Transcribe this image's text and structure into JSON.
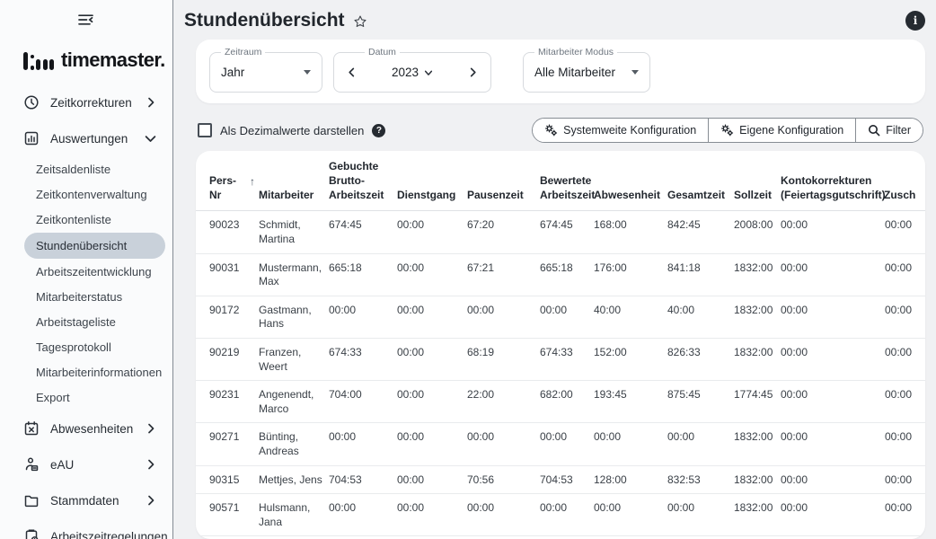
{
  "brand": {
    "logo_text": "timemaster."
  },
  "sidebar": {
    "items": [
      {
        "label": "Zeitkorrekturen",
        "icon": "clock-icon",
        "chevron": "right"
      },
      {
        "label": "Auswertungen",
        "icon": "bar-chart-icon",
        "chevron": "down",
        "active_child": "Stundenübersicht",
        "children": [
          "Zeitsaldenliste",
          "Zeitkontenverwaltung",
          "Zeitkontenliste",
          "Stundenübersicht",
          "Arbeitszeitentwicklung",
          "Mitarbeiterstatus",
          "Arbeitstageliste",
          "Tagesprotokoll",
          "Mitarbeiterinformationen",
          "Export"
        ]
      },
      {
        "label": "Abwesenheiten",
        "icon": "calendar-x-icon",
        "chevron": "right"
      },
      {
        "label": "eAU",
        "icon": "person-document-icon",
        "chevron": "right"
      },
      {
        "label": "Stammdaten",
        "icon": "folder-icon",
        "chevron": "right"
      },
      {
        "label": "Arbeitszeitregelungen",
        "icon": "clipboard-clock-icon",
        "chevron": "right"
      }
    ]
  },
  "header": {
    "title": "Stundenübersicht"
  },
  "filters": {
    "zeitraum": {
      "label": "Zeitraum",
      "value": "Jahr"
    },
    "datum": {
      "label": "Datum",
      "value": "2023"
    },
    "mitarbeiter_modus": {
      "label": "Mitarbeiter Modus",
      "value": "Alle Mitarbeiter"
    }
  },
  "toolbar": {
    "checkbox_label": "Als Dezimalwerte darstellen",
    "checkbox_checked": false,
    "buttons": [
      {
        "label": "Systemweite Konfiguration",
        "icon": "gears-icon"
      },
      {
        "label": "Eigene Konfiguration",
        "icon": "gears-icon"
      },
      {
        "label": "Filter",
        "icon": "search-icon"
      }
    ]
  },
  "table": {
    "sort": {
      "column": 0,
      "direction": "asc"
    },
    "headers": [
      "Pers-\nNr",
      "Mitarbeiter",
      "Gebuchte\nBrutto-\nArbeitszeit",
      "Dienstgang",
      "Pausenzeit",
      "Bewertete\nArbeitszeit",
      "Abwesenheit",
      "Gesamtzeit",
      "Sollzeit",
      "Kontokorrekturen\n(Feiertagsgutschrift)",
      "Zusch"
    ],
    "rows": [
      [
        "90023",
        "Schmidt,\nMartina",
        "674:45",
        "00:00",
        "67:20",
        "674:45",
        "168:00",
        "842:45",
        "2008:00",
        "00:00",
        "00:00"
      ],
      [
        "90031",
        "Mustermann,\nMax",
        "665:18",
        "00:00",
        "67:21",
        "665:18",
        "176:00",
        "841:18",
        "1832:00",
        "00:00",
        "00:00"
      ],
      [
        "90172",
        "Gastmann,\nHans",
        "00:00",
        "00:00",
        "00:00",
        "00:00",
        "40:00",
        "40:00",
        "1832:00",
        "00:00",
        "00:00"
      ],
      [
        "90219",
        "Franzen,\nWeert",
        "674:33",
        "00:00",
        "68:19",
        "674:33",
        "152:00",
        "826:33",
        "1832:00",
        "00:00",
        "00:00"
      ],
      [
        "90231",
        "Angenendt,\nMarco",
        "704:00",
        "00:00",
        "22:00",
        "682:00",
        "193:45",
        "875:45",
        "1774:45",
        "00:00",
        "00:00"
      ],
      [
        "90271",
        "Bünting,\nAndreas",
        "00:00",
        "00:00",
        "00:00",
        "00:00",
        "00:00",
        "00:00",
        "1832:00",
        "00:00",
        "00:00"
      ],
      [
        "90315",
        "Mettjes, Jens",
        "704:53",
        "00:00",
        "70:56",
        "704:53",
        "128:00",
        "832:53",
        "1832:00",
        "00:00",
        "00:00"
      ],
      [
        "90571",
        "Hulsmann,\nJana",
        "00:00",
        "00:00",
        "00:00",
        "00:00",
        "00:00",
        "00:00",
        "1832:00",
        "00:00",
        "00:00"
      ]
    ]
  },
  "colors": {
    "accent_dark": "#262b31",
    "active_item_bg": "#c9d1da",
    "page_bg": "#f0f1f3",
    "card_bg": "#ffffff"
  }
}
